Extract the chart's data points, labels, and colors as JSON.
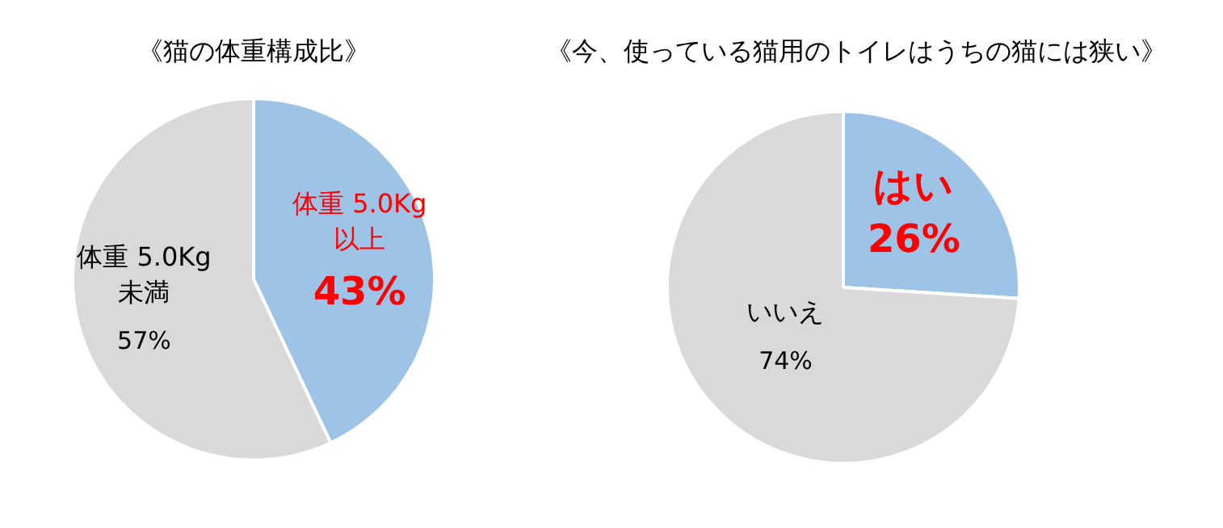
{
  "chart_data": [
    {
      "type": "pie",
      "title": "《猫の体重構成比》",
      "categories": [
        "体重 5.0Kg\n以上",
        "体重 5.0Kg\n未満"
      ],
      "values": [
        43,
        57
      ],
      "colors": [
        "#9dc3e6",
        "#d9d9d9"
      ],
      "value_labels": [
        "43%",
        "57%"
      ]
    },
    {
      "type": "pie",
      "title": "《今、使っている猫用のトイレはうちの猫には狭い》",
      "categories": [
        "はい",
        "いいえ"
      ],
      "values": [
        26,
        74
      ],
      "colors": [
        "#9dc3e6",
        "#d9d9d9"
      ],
      "value_labels": [
        "26%",
        "74%"
      ]
    }
  ]
}
